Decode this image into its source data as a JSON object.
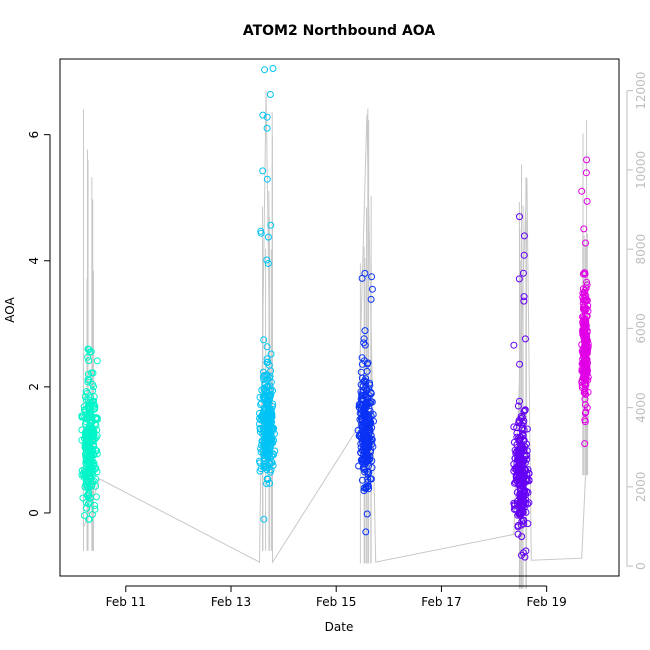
{
  "chart_data": {
    "type": "scatter",
    "title": "ATOM2 Northbound AOA",
    "xlabel": "Date",
    "ylabel": "AOA",
    "xlim": [
      "2020-02-09 18:00",
      "2020-02-20 09:00"
    ],
    "ylim": [
      -1.0,
      7.2
    ],
    "y_ticks": [
      0,
      2,
      4,
      6
    ],
    "x_ticks": [
      {
        "date": "2020-02-11",
        "label": "Feb 11"
      },
      {
        "date": "2020-02-13",
        "label": "Feb 13"
      },
      {
        "date": "2020-02-15",
        "label": "Feb 15"
      },
      {
        "date": "2020-02-17",
        "label": "Feb 17"
      },
      {
        "date": "2020-02-19",
        "label": "Feb 19"
      }
    ],
    "right_axis": {
      "ylim": [
        -250,
        12800
      ],
      "ticks": [
        0,
        2000,
        4000,
        6000,
        8000,
        10000,
        12000
      ],
      "color": "#bebebe"
    },
    "grid": false,
    "legend": "none",
    "series": [
      {
        "start": "2020-02-10 04:00",
        "end": "2020-02-10 11:00",
        "color": "#00f5c8",
        "y_center": 1.0,
        "y_min": -0.1,
        "y_max": 2.6
      },
      {
        "start": "2020-02-13 13:00",
        "end": "2020-02-13 20:00",
        "color": "#00c3f5",
        "y_center": 1.4,
        "y_min": -0.1,
        "y_max": 7.05
      },
      {
        "start": "2020-02-15 10:00",
        "end": "2020-02-15 17:00",
        "color": "#0a32f5",
        "y_center": 1.3,
        "y_min": -0.3,
        "y_max": 3.8
      },
      {
        "start": "2020-02-18 09:00",
        "end": "2020-02-18 16:00",
        "color": "#6400f5",
        "y_center": 0.6,
        "y_min": -0.7,
        "y_max": 4.7
      },
      {
        "start": "2020-02-19 16:00",
        "end": "2020-02-19 19:00",
        "color": "#e100e6",
        "y_center": 2.6,
        "y_min": 1.1,
        "y_max": 5.6
      }
    ],
    "count_line": {
      "color": "#c8c8c8",
      "points": [
        [
          "2020-02-10 05:00",
          1000
        ],
        [
          "2020-02-10 12:00",
          2200
        ],
        [
          "2020-02-13 13:00",
          100
        ],
        [
          "2020-02-13 16:00",
          12000
        ],
        [
          "2020-02-13 19:00",
          100
        ],
        [
          "2020-02-15 10:00",
          3500
        ],
        [
          "2020-02-15 14:00",
          11400
        ],
        [
          "2020-02-15 18:00",
          100
        ],
        [
          "2020-02-18 09:00",
          800
        ],
        [
          "2020-02-18 15:00",
          9800
        ],
        [
          "2020-02-18 17:00",
          150
        ],
        [
          "2020-02-19 16:00",
          200
        ],
        [
          "2020-02-19 19:00",
          3800
        ]
      ]
    }
  }
}
